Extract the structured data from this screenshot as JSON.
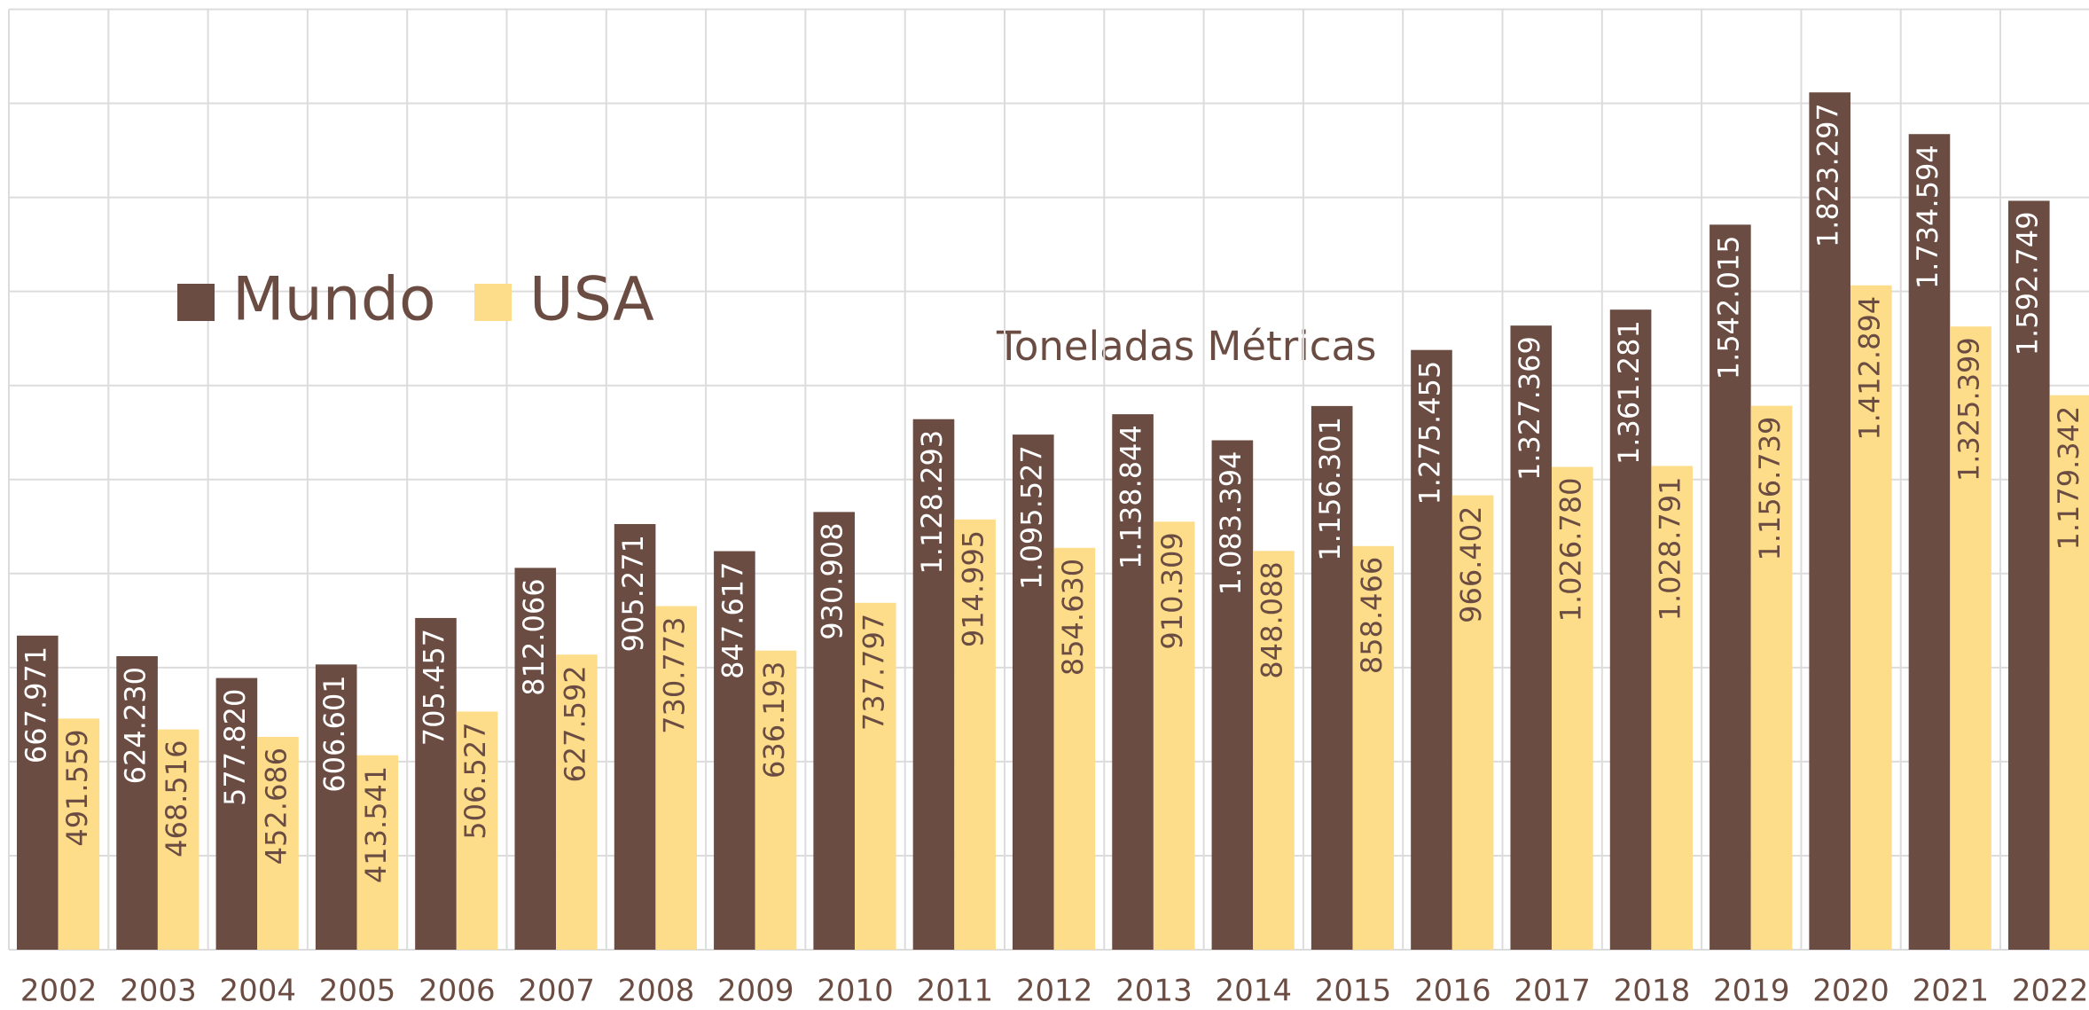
{
  "chart_data": {
    "type": "bar",
    "annotation": "Toneladas Métricas",
    "categories": [
      "2002",
      "2003",
      "2004",
      "2005",
      "2006",
      "2007",
      "2008",
      "2009",
      "2010",
      "2011",
      "2012",
      "2013",
      "2014",
      "2015",
      "2016",
      "2017",
      "2018",
      "2019",
      "2020",
      "2021",
      "2022"
    ],
    "series": [
      {
        "name": "Mundo",
        "color": "#6b4c42",
        "values": [
          667971,
          624230,
          577820,
          606601,
          705457,
          812066,
          905271,
          847617,
          930908,
          1128293,
          1095527,
          1138844,
          1083394,
          1156301,
          1275455,
          1327369,
          1361281,
          1542015,
          1823297,
          1734594,
          1592749
        ],
        "value_labels": [
          "667.971",
          "624.230",
          "577.820",
          "606.601",
          "705.457",
          "812.066",
          "905.271",
          "847.617",
          "930.908",
          "1.128.293",
          "1.095.527",
          "1.138.844",
          "1.083.394",
          "1.156.301",
          "1.275.455",
          "1.327.369",
          "1.361.281",
          "1.542.015",
          "1.823.297",
          "1.734.594",
          "1.592.749"
        ]
      },
      {
        "name": "USA",
        "color": "#fddc8a",
        "values": [
          491559,
          468516,
          452686,
          413541,
          506527,
          627592,
          730773,
          636193,
          737797,
          914995,
          854630,
          910309,
          848088,
          858466,
          966402,
          1026780,
          1028791,
          1156739,
          1412894,
          1325399,
          1179342
        ],
        "value_labels": [
          "491.559",
          "468.516",
          "452.686",
          "413.541",
          "506.527",
          "627.592",
          "730.773",
          "636.193",
          "737.797",
          "914.995",
          "854.630",
          "910.309",
          "848.088",
          "858.466",
          "966.402",
          "1.026.780",
          "1.028.791",
          "1.156.739",
          "1.412.894",
          "1.325.399",
          "1.179.342"
        ]
      }
    ],
    "ylim": [
      0,
      2000000
    ],
    "yticks": [
      0,
      200000,
      400000,
      600000,
      800000,
      1000000,
      1200000,
      1400000,
      1600000,
      1800000,
      2000000
    ],
    "grid": true,
    "legend": "upper left"
  }
}
